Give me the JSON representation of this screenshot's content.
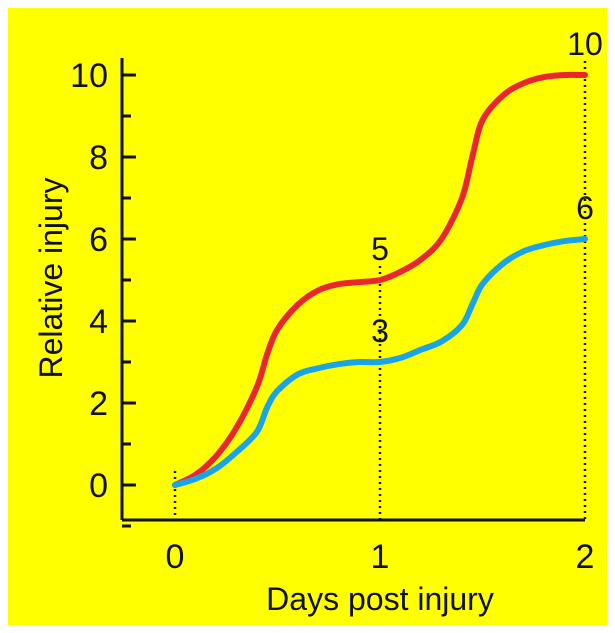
{
  "chart_data": {
    "type": "line",
    "xlabel": "Days post injury",
    "ylabel": "Relative injury",
    "xlim": [
      0,
      2
    ],
    "ylim": [
      -0.8,
      10.4
    ],
    "x_ticks": [
      0,
      1,
      2
    ],
    "y_ticks": [
      0,
      2,
      4,
      6,
      8,
      10
    ],
    "grid": false,
    "legend": "none",
    "background_color": "#ffff00",
    "series": [
      {
        "color": "#e8262b",
        "x": [
          0,
          0.1,
          0.2,
          0.3,
          0.4,
          0.45,
          0.5,
          0.6,
          0.7,
          0.8,
          0.9,
          1.0,
          1.1,
          1.2,
          1.3,
          1.4,
          1.45,
          1.5,
          1.6,
          1.7,
          1.8,
          1.9,
          2.0
        ],
        "y": [
          0,
          0.25,
          0.7,
          1.4,
          2.4,
          3.2,
          3.8,
          4.4,
          4.75,
          4.9,
          4.95,
          5.0,
          5.2,
          5.5,
          6.0,
          7.0,
          8.0,
          8.9,
          9.5,
          9.8,
          9.95,
          10.0,
          10.0
        ]
      },
      {
        "color": "#1aa4e8",
        "x": [
          0,
          0.1,
          0.2,
          0.3,
          0.4,
          0.45,
          0.5,
          0.6,
          0.7,
          0.8,
          0.9,
          1.0,
          1.1,
          1.2,
          1.3,
          1.4,
          1.45,
          1.5,
          1.6,
          1.7,
          1.8,
          1.9,
          2.0
        ],
        "y": [
          0,
          0.15,
          0.4,
          0.8,
          1.3,
          1.9,
          2.3,
          2.7,
          2.85,
          2.95,
          3.0,
          3.0,
          3.1,
          3.3,
          3.5,
          3.9,
          4.4,
          4.9,
          5.4,
          5.7,
          5.85,
          5.95,
          6.0
        ]
      }
    ],
    "annotations": [
      {
        "text": "5",
        "x": 1,
        "y": 5
      },
      {
        "text": "3",
        "x": 1,
        "y": 3
      },
      {
        "text": "10",
        "x": 2,
        "y": 10
      },
      {
        "text": "6",
        "x": 2,
        "y": 6
      }
    ],
    "guides": [
      {
        "x": 0,
        "y_top": 0
      },
      {
        "x": 1,
        "y_top": 5
      },
      {
        "x": 2,
        "y_top": 10
      }
    ]
  }
}
